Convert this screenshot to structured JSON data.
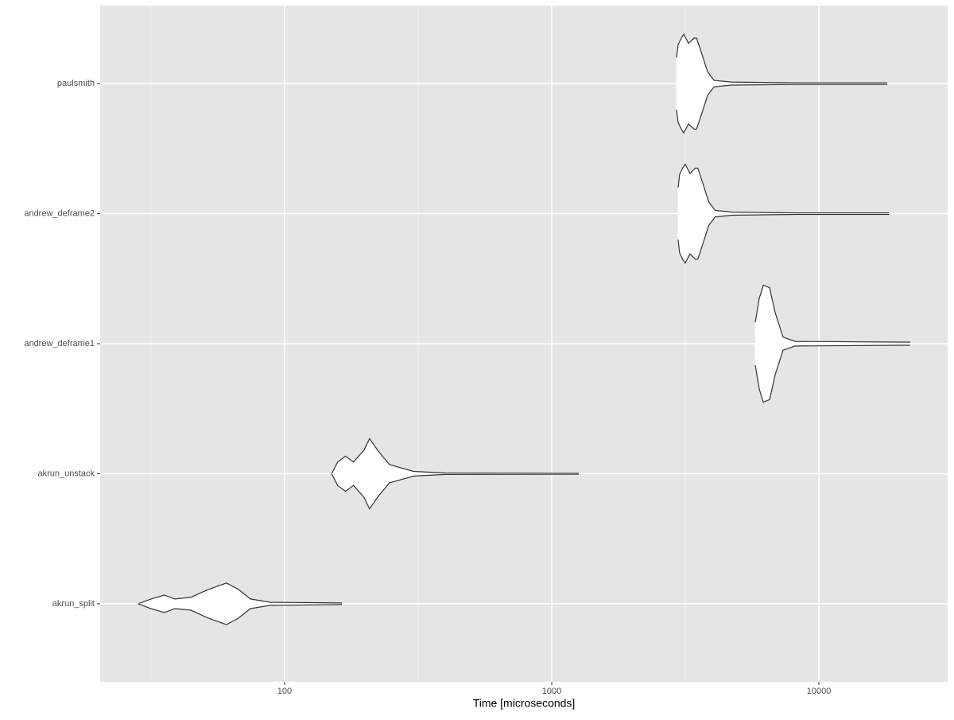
{
  "chart_data": {
    "type": "violin",
    "x_label": "Time [microseconds]",
    "x_scale": "log",
    "xlim": [
      20.4,
      30340
    ],
    "xticks": [
      100,
      1000,
      10000
    ],
    "x_minor_ticks": [
      31.62,
      316.2,
      3162
    ],
    "grid": true,
    "panel_color": "#e5e5e5",
    "fill_color": "#ffffff",
    "line_color": "#333333",
    "categories": [
      "akrun_split",
      "akrun_unstack",
      "andrew_deframe1",
      "andrew_deframe2",
      "paulsmith"
    ],
    "series": [
      {
        "name": "akrun_split",
        "x": [
          28.3,
          31.6,
          35.5,
          38.8,
          44.5,
          51.8,
          60.6,
          67.2,
          74.5,
          88.4,
          163.8
        ],
        "density": [
          0,
          0.037,
          0.067,
          0.037,
          0.049,
          0.11,
          0.16,
          0.11,
          0.037,
          0.012,
          0.006
        ]
      },
      {
        "name": "akrun_unstack",
        "x": [
          150,
          158,
          169,
          181,
          198,
          208,
          223,
          247,
          304,
          399,
          1262
        ],
        "density": [
          0,
          0.09,
          0.135,
          0.09,
          0.18,
          0.27,
          0.18,
          0.07,
          0.018,
          0.006,
          0.003
        ]
      },
      {
        "name": "andrew_deframe1",
        "x": [
          5780,
          5985,
          6195,
          6540,
          6860,
          7345,
          8150,
          19860,
          21990
        ],
        "density": [
          0.165,
          0.35,
          0.45,
          0.43,
          0.24,
          0.05,
          0.018,
          0.012,
          0.012
        ]
      },
      {
        "name": "andrew_deframe2",
        "x": [
          2972,
          3010,
          3090,
          3160,
          3290,
          3450,
          3520,
          3670,
          3870,
          4090,
          4750,
          8230,
          18300
        ],
        "density": [
          0.2,
          0.3,
          0.35,
          0.38,
          0.31,
          0.35,
          0.35,
          0.24,
          0.09,
          0.025,
          0.012,
          0.006,
          0.006
        ]
      },
      {
        "name": "paulsmith",
        "x": [
          2931,
          2972,
          3055,
          3118,
          3250,
          3410,
          3483,
          3631,
          3833,
          4049,
          4708,
          8150,
          18030
        ],
        "density": [
          0.2,
          0.3,
          0.35,
          0.38,
          0.31,
          0.35,
          0.35,
          0.24,
          0.09,
          0.025,
          0.012,
          0.006,
          0.006
        ]
      }
    ]
  }
}
